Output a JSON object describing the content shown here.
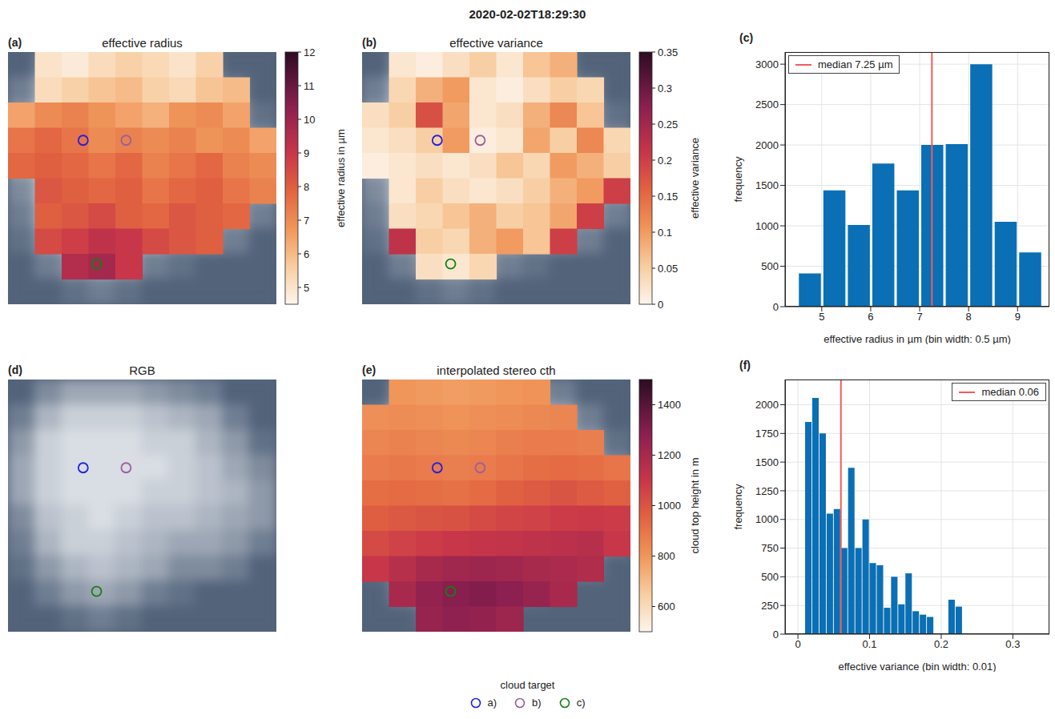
{
  "title": "2020-02-02T18:29:30",
  "cloud_targets": {
    "title": "cloud target",
    "items": [
      {
        "name": "a)",
        "color": "#2020e0",
        "x": 2.8,
        "y": 3.5
      },
      {
        "name": "b)",
        "color": "#9a5f9a",
        "x": 4.4,
        "y": 3.5
      },
      {
        "name": "c)",
        "color": "#148014",
        "x": 3.3,
        "y": 8.4
      }
    ]
  },
  "chart_data": [
    {
      "type": "heatmap",
      "panel": "(a)",
      "title": "effective radius",
      "cells": [
        [
          null,
          5,
          4.8,
          5.2,
          5.5,
          5.3,
          5.0,
          5.5,
          null,
          null
        ],
        [
          null,
          5.2,
          5.5,
          5.8,
          6.0,
          5.5,
          5.3,
          5.8,
          6.0,
          null
        ],
        [
          6.5,
          7.0,
          7.2,
          6.8,
          6.5,
          6.2,
          6.8,
          7.0,
          6.5,
          null
        ],
        [
          7.5,
          7.8,
          7.5,
          7.0,
          7.2,
          7.0,
          7.2,
          6.8,
          7.0,
          6.5
        ],
        [
          7.8,
          8.0,
          7.8,
          7.5,
          7.8,
          7.2,
          7.5,
          7.8,
          7.2,
          7.0
        ],
        [
          null,
          8.2,
          8.0,
          7.8,
          8.0,
          7.5,
          7.8,
          8.0,
          7.5,
          7.2
        ],
        [
          null,
          8.0,
          8.2,
          8.5,
          8.0,
          7.8,
          8.2,
          8.0,
          7.8,
          null
        ],
        [
          null,
          8.5,
          8.8,
          9.2,
          9.0,
          8.5,
          8.2,
          8.0,
          null,
          null
        ],
        [
          null,
          null,
          9.5,
          9.8,
          9.0,
          null,
          null,
          null,
          null,
          null
        ],
        [
          null,
          null,
          null,
          null,
          null,
          null,
          null,
          null,
          null,
          null
        ]
      ],
      "colorbar": {
        "label": "effective radius in µm",
        "range": [
          4.5,
          12
        ],
        "ticks": [
          5,
          6,
          7,
          8,
          9,
          10,
          11,
          12
        ]
      }
    },
    {
      "type": "heatmap",
      "panel": "(b)",
      "title": "effective variance",
      "cells": [
        [
          null,
          0.02,
          0.01,
          0.03,
          0.05,
          0.02,
          0.06,
          0.08,
          null,
          null
        ],
        [
          null,
          0.04,
          0.08,
          0.1,
          0.02,
          0.01,
          0.03,
          0.05,
          0.04,
          null
        ],
        [
          0.03,
          0.05,
          0.18,
          0.09,
          0.02,
          0.03,
          0.08,
          0.12,
          0.06,
          null
        ],
        [
          0.02,
          0.03,
          0.05,
          0.1,
          0.01,
          0.02,
          0.09,
          0.05,
          0.12,
          0.04
        ],
        [
          0.01,
          0.02,
          0.03,
          0.02,
          0.03,
          0.06,
          0.04,
          0.1,
          0.08,
          0.05
        ],
        [
          null,
          0.02,
          0.05,
          0.03,
          0.02,
          0.03,
          0.05,
          0.08,
          0.1,
          0.2
        ],
        [
          null,
          0.03,
          0.04,
          0.06,
          0.08,
          0.05,
          0.06,
          0.09,
          0.2,
          null
        ],
        [
          null,
          0.22,
          0.05,
          0.04,
          0.08,
          0.1,
          0.06,
          0.2,
          null,
          null
        ],
        [
          null,
          null,
          0.03,
          0.02,
          0.04,
          null,
          null,
          null,
          null,
          null
        ],
        [
          null,
          null,
          null,
          null,
          null,
          null,
          null,
          null,
          null,
          null
        ]
      ],
      "colorbar": {
        "label": "effective variance",
        "range": [
          0,
          0.35
        ],
        "ticks": [
          0,
          0.05,
          0.1,
          0.15,
          0.2,
          0.25,
          0.3,
          0.35
        ]
      }
    },
    {
      "type": "histogram",
      "panel": "(c)",
      "color": "#0a6fb4",
      "bins": [
        4.5,
        5,
        5.5,
        6,
        6.5,
        7,
        7.5,
        8,
        8.5,
        9,
        9.5
      ],
      "values": [
        410,
        1440,
        1010,
        1770,
        1440,
        2000,
        2010,
        3000,
        1050,
        670
      ],
      "xlabel": "effective radius in µm (bin width: 0.5 µm)",
      "ylabel": "frequency",
      "xlim": [
        4.25,
        9.65
      ],
      "xticks": [
        5,
        6,
        7,
        8,
        9
      ],
      "ylim": [
        0,
        3150
      ],
      "yticks": [
        0,
        500,
        1000,
        1500,
        2000,
        2500,
        3000
      ],
      "grid": true,
      "median": 7.25,
      "median_label": "median 7.25 µm",
      "median_color": "#f45b5b",
      "legend": "upper left"
    },
    {
      "type": "image",
      "panel": "(d)",
      "title": "RGB",
      "cells": [
        [
          0,
          0.3,
          0.5,
          0.5,
          0.5,
          0.4,
          0.3,
          0.2,
          0,
          0
        ],
        [
          0.2,
          0.6,
          0.8,
          0.8,
          0.8,
          0.7,
          0.6,
          0.5,
          0.2,
          0
        ],
        [
          0.4,
          0.8,
          0.9,
          0.9,
          0.9,
          0.8,
          0.8,
          0.6,
          0.4,
          0.1
        ],
        [
          0.5,
          0.8,
          0.9,
          0.9,
          0.9,
          0.9,
          0.8,
          0.7,
          0.5,
          0.3
        ],
        [
          0.5,
          0.8,
          0.9,
          0.9,
          0.9,
          0.8,
          0.8,
          0.7,
          0.6,
          0.4
        ],
        [
          0.3,
          0.7,
          0.8,
          0.9,
          0.8,
          0.7,
          0.7,
          0.6,
          0.5,
          0.4
        ],
        [
          0.2,
          0.6,
          0.8,
          0.8,
          0.7,
          0.6,
          0.5,
          0.5,
          0.4,
          0.2
        ],
        [
          0.1,
          0.4,
          0.6,
          0.7,
          0.6,
          0.5,
          0.3,
          0.3,
          0.2,
          0
        ],
        [
          0,
          0.2,
          0.4,
          0.5,
          0.4,
          0.2,
          0.1,
          0,
          0,
          0
        ],
        [
          0,
          0,
          0.1,
          0.2,
          0.1,
          0,
          0,
          0,
          0,
          0
        ]
      ]
    },
    {
      "type": "heatmap",
      "panel": "(e)",
      "title": "interpolated stereo cth",
      "cells": [
        [
          null,
          800,
          790,
          780,
          790,
          800,
          810,
          null,
          null,
          null
        ],
        [
          820,
          830,
          820,
          810,
          820,
          830,
          840,
          850,
          null,
          null
        ],
        [
          850,
          860,
          850,
          840,
          850,
          870,
          880,
          880,
          870,
          null
        ],
        [
          880,
          890,
          880,
          870,
          880,
          900,
          920,
          930,
          920,
          900
        ],
        [
          920,
          930,
          920,
          910,
          930,
          960,
          980,
          1000,
          980,
          960
        ],
        [
          970,
          990,
          1000,
          1010,
          1030,
          1050,
          1060,
          1080,
          1090,
          1080
        ],
        [
          1030,
          1060,
          1080,
          1100,
          1110,
          1120,
          1130,
          1140,
          1150,
          1100
        ],
        [
          1100,
          1150,
          1200,
          1220,
          1230,
          1220,
          1200,
          1190,
          1170,
          null
        ],
        [
          null,
          1200,
          1260,
          1290,
          1300,
          1280,
          1250,
          1200,
          null,
          null
        ],
        [
          null,
          null,
          1250,
          1270,
          1260,
          1230,
          null,
          null,
          null,
          null
        ]
      ],
      "colorbar": {
        "label": "cloud top height in m",
        "range": [
          500,
          1500
        ],
        "ticks": [
          600,
          800,
          1000,
          1200,
          1400
        ]
      }
    },
    {
      "type": "histogram",
      "panel": "(f)",
      "color": "#0a6fb4",
      "bins": [
        0.01,
        0.02,
        0.03,
        0.04,
        0.05,
        0.06,
        0.07,
        0.08,
        0.09,
        0.1,
        0.11,
        0.12,
        0.13,
        0.14,
        0.15,
        0.16,
        0.17,
        0.18,
        0.19,
        0.2,
        0.21,
        0.22,
        0.23
      ],
      "values": [
        1850,
        2060,
        1750,
        1050,
        1090,
        750,
        1450,
        750,
        1000,
        620,
        600,
        230,
        500,
        260,
        530,
        200,
        170,
        150,
        0,
        0,
        300,
        240
      ],
      "xlabel": "effective variance (bin width: 0.01)",
      "ylabel": "frequency",
      "xlim": [
        -0.018,
        0.351
      ],
      "xticks": [
        0,
        0.1,
        0.2,
        0.3
      ],
      "ylim": [
        0,
        2220
      ],
      "yticks": [
        0,
        250,
        500,
        750,
        1000,
        1250,
        1500,
        1750,
        2000
      ],
      "grid": true,
      "median": 0.06,
      "median_label": "median 0.06",
      "median_color": "#f45b5b",
      "legend": "upper right"
    }
  ]
}
